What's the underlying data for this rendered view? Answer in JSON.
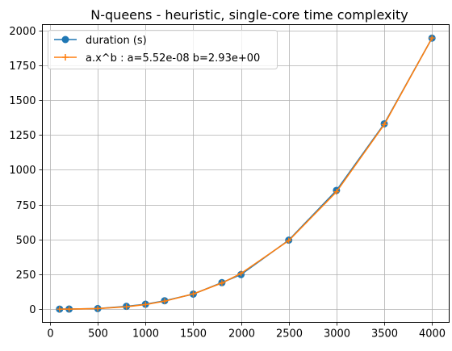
{
  "chart_data": {
    "type": "line",
    "title": "N-queens - heuristic, single-core time complexity",
    "xlabel": "",
    "ylabel": "",
    "xlim": [
      -80,
      4180
    ],
    "ylim": [
      -95,
      2042
    ],
    "xticks": [
      0,
      500,
      1000,
      1500,
      2000,
      2500,
      3000,
      3500,
      4000
    ],
    "xtick_labels": [
      "0",
      "500",
      "1000",
      "1500",
      "2000",
      "2500",
      "3000",
      "3500",
      "4000"
    ],
    "yticks": [
      0,
      250,
      500,
      750,
      1000,
      1250,
      1500,
      1750,
      2000
    ],
    "ytick_labels": [
      "0",
      "250",
      "500",
      "750",
      "1000",
      "1250",
      "1500",
      "1750",
      "2000"
    ],
    "grid": true,
    "legend_position": "top-left",
    "x": [
      100,
      200,
      500,
      800,
      1000,
      1200,
      1500,
      1800,
      2000,
      2500,
      3000,
      3500,
      4000
    ],
    "series": [
      {
        "name": "duration (s)",
        "color": "#1f77b4",
        "marker": "circle",
        "values": [
          0,
          0.5,
          4,
          20,
          35,
          60,
          108,
          190,
          248,
          495,
          852,
          1330,
          1945
        ]
      },
      {
        "name": "a.x^b : a=5.52e-08 b=2.93e+00",
        "color": "#ff7f0e",
        "marker": "plus",
        "values": [
          0.04,
          0.3,
          4,
          17,
          33,
          57,
          109,
          187,
          256,
          492,
          842,
          1325,
          1946
        ]
      }
    ]
  }
}
